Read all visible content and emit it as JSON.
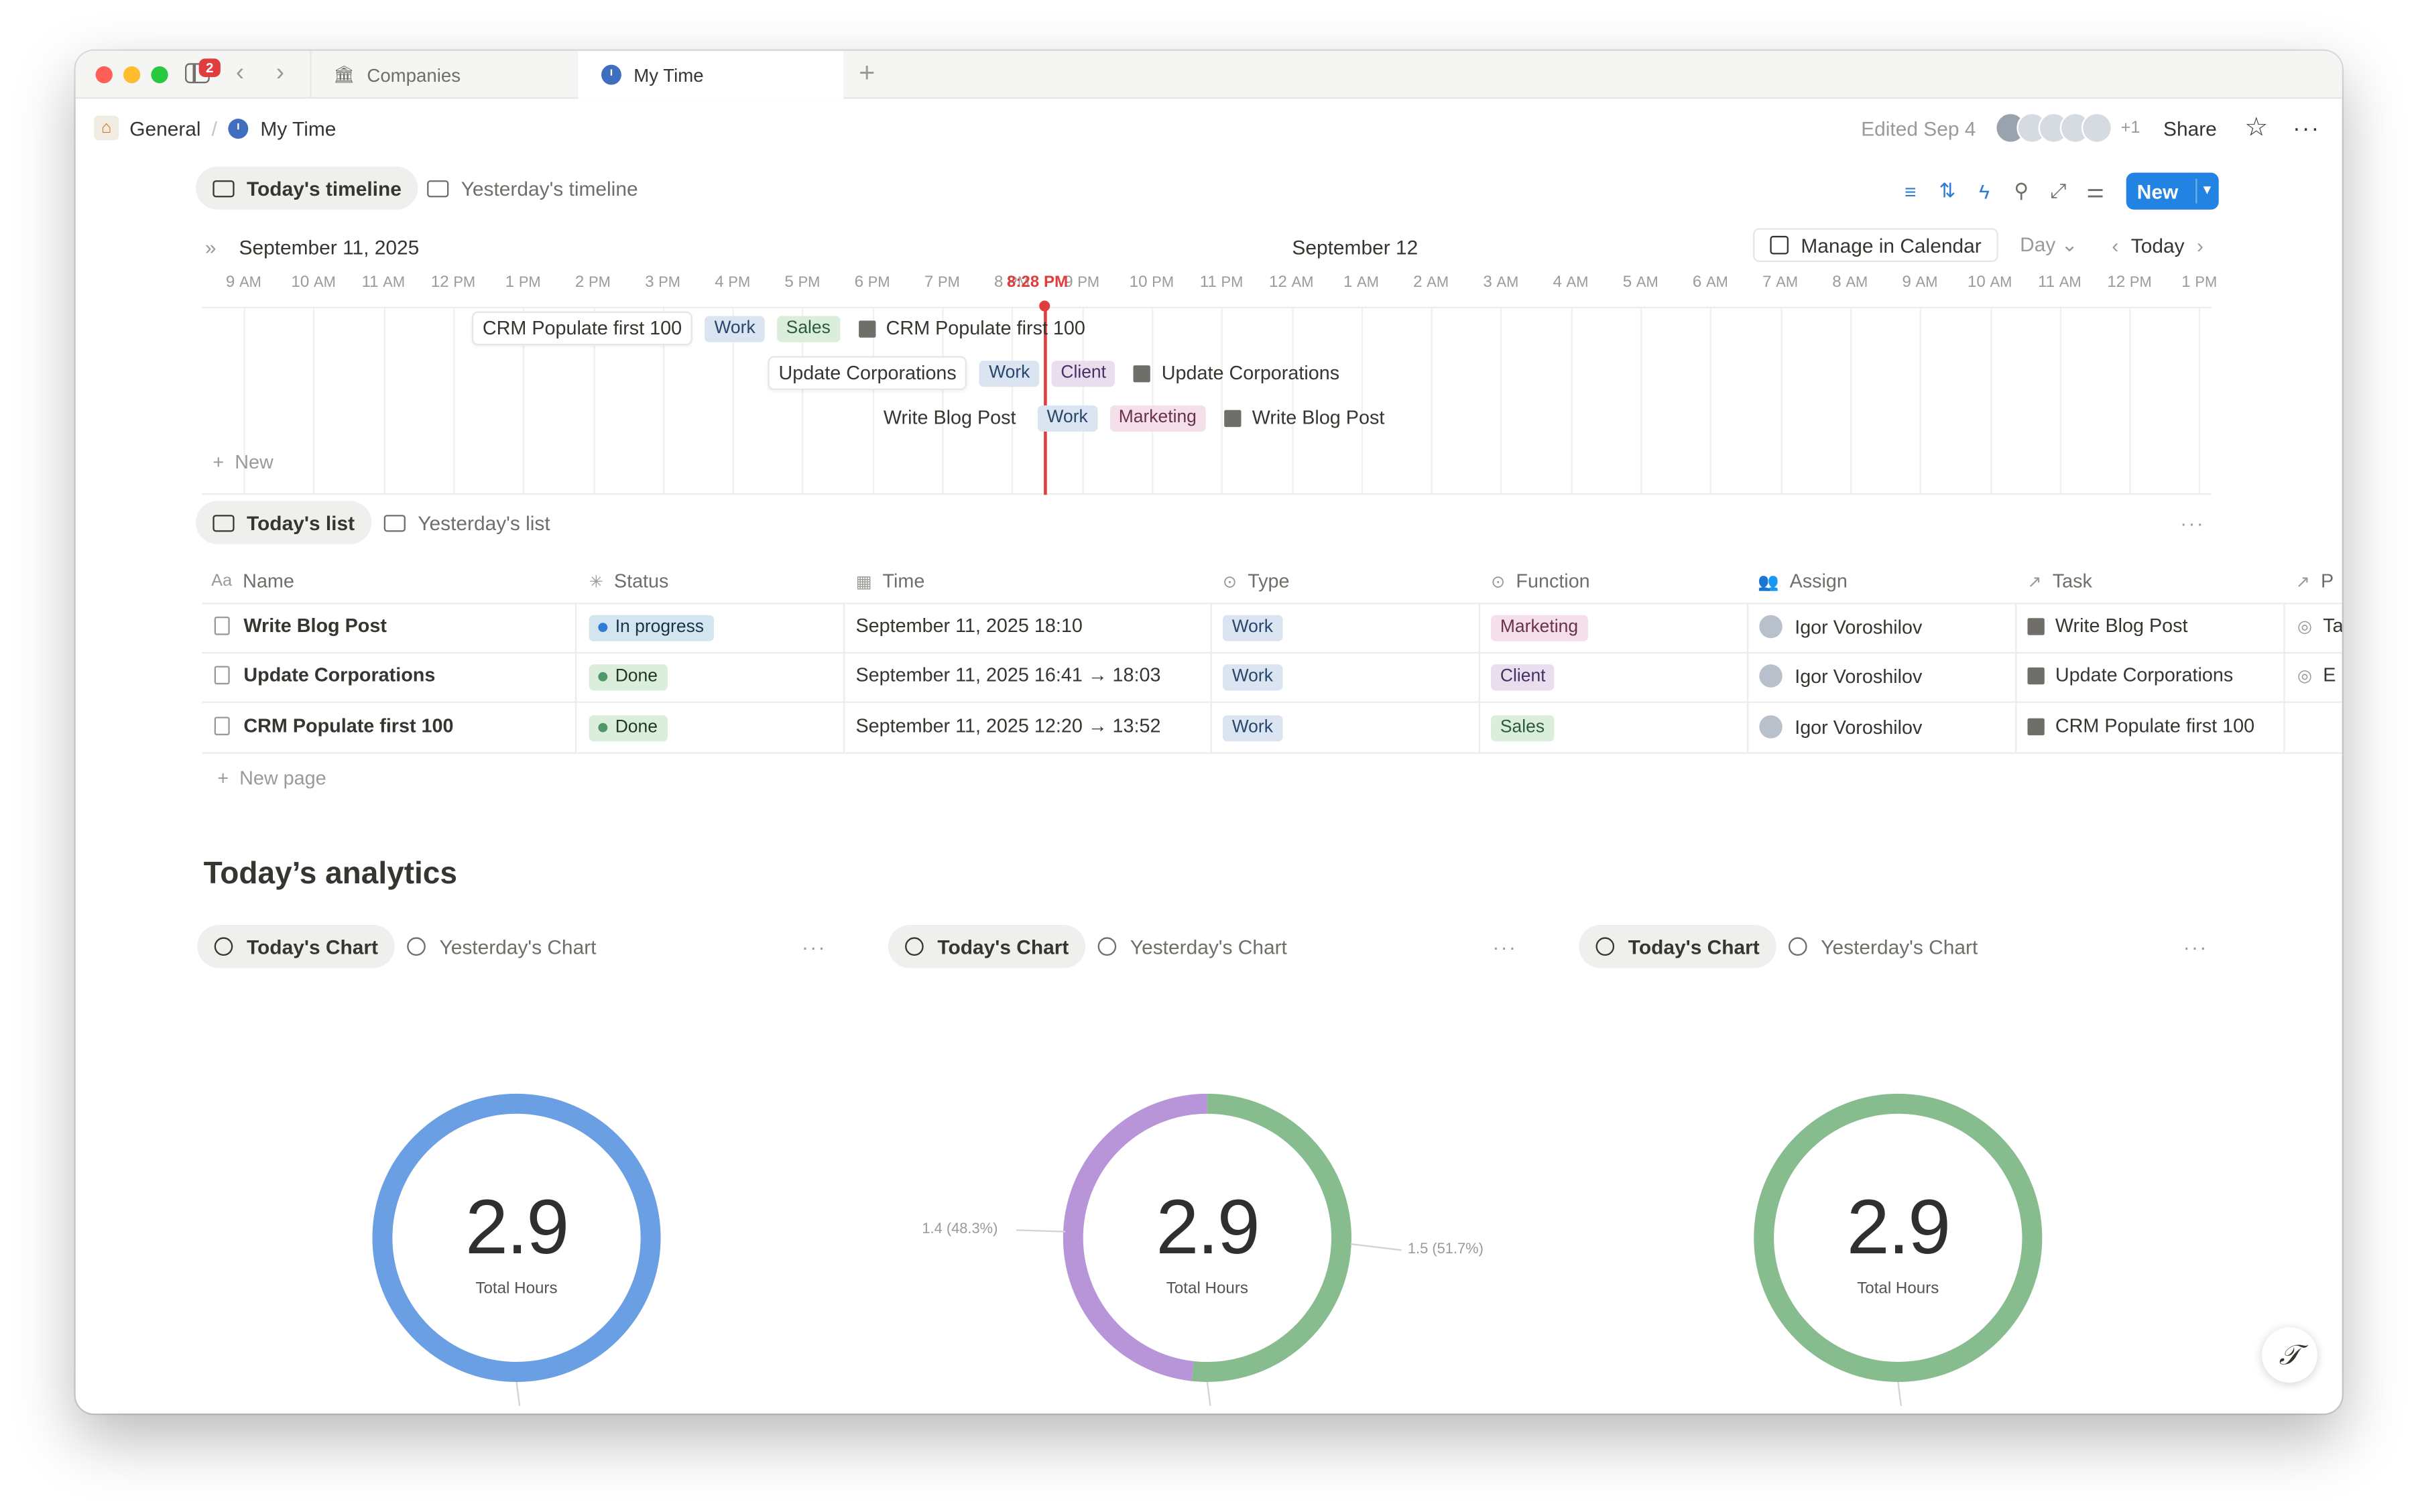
{
  "window": {
    "tab_badge": "2",
    "tabs": [
      {
        "label": "Companies",
        "icon": "building-icon"
      },
      {
        "label": "My Time",
        "icon": "clock-icon"
      }
    ]
  },
  "header": {
    "breadcrumb": [
      "General",
      "My Time"
    ],
    "edited": "Edited Sep 4",
    "extra_collaborators": "+1",
    "share_label": "Share"
  },
  "timeline_view": {
    "tabs": [
      "Today's timeline",
      "Yesterday's timeline"
    ],
    "new_label": "New",
    "date_left": "September 11, 2025",
    "date_mid": "September 12",
    "manage_calendar": "Manage in Calendar",
    "scale": "Day",
    "today": "Today",
    "now_label": "8:28 PM",
    "hours": [
      "9 AM",
      "10 AM",
      "11 AM",
      "12 PM",
      "1 PM",
      "2 PM",
      "3 PM",
      "4 PM",
      "5 PM",
      "6 PM",
      "7 PM",
      "8 PM",
      "9 PM",
      "10 PM",
      "11 PM",
      "12 AM",
      "1 AM",
      "2 AM",
      "3 AM",
      "4 AM",
      "5 AM",
      "6 AM",
      "7 AM",
      "8 AM",
      "9 AM",
      "10 AM",
      "11 AM",
      "12 PM",
      "1 PM"
    ],
    "items": [
      {
        "name": "CRM Populate first 100",
        "type": "Work",
        "function": "Sales",
        "task": "CRM Populate first 100"
      },
      {
        "name": "Update Corporations",
        "type": "Work",
        "function": "Client",
        "task": "Update Corporations"
      },
      {
        "name": "Write Blog Post",
        "type": "Work",
        "function": "Marketing",
        "task": "Write Blog Post"
      }
    ],
    "add_new": "New"
  },
  "list_view": {
    "tabs": [
      "Today's list",
      "Yesterday's list"
    ],
    "columns": [
      "Name",
      "Status",
      "Time",
      "Type",
      "Function",
      "Assign",
      "Task",
      "P"
    ],
    "rows": [
      {
        "name": "Write Blog Post",
        "status": "In progress",
        "time": "September 11, 2025 18:10",
        "type": "Work",
        "function": "Marketing",
        "assign": "Igor Voroshilov",
        "task": "Write Blog Post",
        "extra": "Ta"
      },
      {
        "name": "Update Corporations",
        "status": "Done",
        "time": "September 11, 2025 16:41 → 18:03",
        "type": "Work",
        "function": "Client",
        "assign": "Igor Voroshilov",
        "task": "Update Corporations",
        "extra": "E"
      },
      {
        "name": "CRM Populate first 100",
        "status": "Done",
        "time": "September 11, 2025 12:20 → 13:52",
        "type": "Work",
        "function": "Sales",
        "assign": "Igor Voroshilov",
        "task": "CRM Populate first 100",
        "extra": ""
      }
    ],
    "new_page": "New page"
  },
  "analytics": {
    "title": "Today’s analytics",
    "chart_tabs": [
      "Today's Chart",
      "Yesterday's Chart"
    ]
  },
  "chart_data": [
    {
      "type": "pie",
      "center_value": "2.9",
      "center_label": "Total Hours",
      "slices": [
        {
          "value": 2.9,
          "color": "#6b9fe4"
        }
      ],
      "labels": []
    },
    {
      "type": "pie",
      "center_value": "2.9",
      "center_label": "Total Hours",
      "slices": [
        {
          "value": 1.5,
          "color": "#87bc8f",
          "label": "1.5 (51.7%)"
        },
        {
          "value": 1.4,
          "color": "#b894d9",
          "label": "1.4 (48.3%)"
        }
      ],
      "labels": [
        "1.4 (48.3%)",
        "1.5 (51.7%)"
      ]
    },
    {
      "type": "pie",
      "center_value": "2.9",
      "center_label": "Total Hours",
      "slices": [
        {
          "value": 2.9,
          "color": "#87bc8f"
        }
      ],
      "labels": []
    }
  ],
  "colors": {
    "accent": "#2383e2",
    "now_line": "#e03e3e"
  }
}
